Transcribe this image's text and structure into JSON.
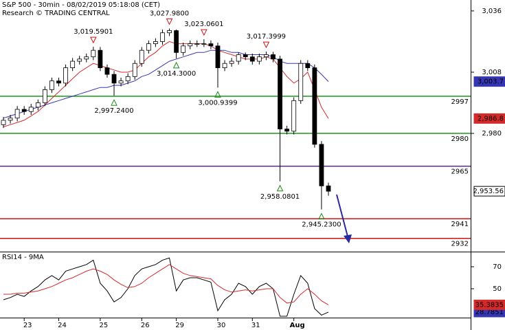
{
  "chart_data": [
    {
      "type": "candlestick",
      "title": "S&P 500 - 30min - 08/02/2019 05:18:08 (CET)",
      "subtitle": "Research © TRADING CENTRAL",
      "categories": [
        null,
        null,
        null,
        "23",
        null,
        null,
        null,
        null,
        "24",
        null,
        null,
        null,
        null,
        null,
        "25",
        null,
        null,
        null,
        null,
        null,
        "26",
        null,
        null,
        null,
        null,
        "29",
        null,
        null,
        null,
        null,
        null,
        "30",
        null,
        null,
        null,
        null,
        "31",
        null,
        null,
        null,
        null,
        null,
        "Aug",
        null,
        null,
        null,
        null,
        null
      ],
      "open": [
        2984,
        2986,
        2987,
        2991,
        2990,
        2992,
        2994,
        3000,
        3004,
        3003,
        3010,
        3013,
        3014,
        3015,
        3018,
        3010,
        3007,
        3003,
        3004,
        3006,
        3012,
        3018,
        3021,
        3022,
        3026,
        3027,
        3017,
        3020,
        3021,
        3021,
        3021,
        3020,
        3010,
        3012,
        3013,
        3016,
        3015,
        3013,
        3015,
        3016,
        3014,
        2982,
        2981,
        2995,
        3012,
        3010,
        2975,
        2956
      ],
      "high": [
        2987.5,
        2988.5,
        2992.5,
        2992.5,
        2993.5,
        2995.5,
        3001.5,
        3005.5,
        3005.5,
        3011.5,
        3014.5,
        3015.5,
        3016.5,
        3019.5901,
        3019.5,
        3011.5,
        3008.5,
        3005.5,
        3007.5,
        3013.5,
        3019.5,
        3022.5,
        3023.5,
        3027.5,
        3027.98,
        3027.5,
        3021.5,
        3022.5,
        3022.5,
        3023.0601,
        3022.5,
        3021.5,
        3013.5,
        3014.5,
        3017,
        3017,
        3016.5,
        3016.5,
        3017.3999,
        3017.3,
        3015.5,
        2983.5,
        2996.5,
        3013.5,
        3013.5,
        3011.5,
        2976.5,
        2957.5
      ],
      "low": [
        2982.5,
        2984.5,
        2985.5,
        2988.5,
        2988.5,
        2990.5,
        2992.5,
        2998.5,
        3001.5,
        3001.5,
        3008.5,
        3011.5,
        3012.5,
        3013.5,
        3008.5,
        3005.5,
        2997.24,
        3001.5,
        3002.5,
        3004.5,
        3010.5,
        3016.5,
        3019.5,
        3020.5,
        3024.5,
        3014.3,
        3015.5,
        3018.5,
        3019.5,
        3019.5,
        3018.5,
        3000.9399,
        3008.5,
        3010.5,
        3011.5,
        3013.5,
        3011.5,
        3011.5,
        3013.5,
        3012.5,
        2958.0801,
        2979.5,
        2979.5,
        2993.5,
        3008.5,
        2973.5,
        2945.23,
        2951.5
      ],
      "close": [
        2986,
        2987,
        2991,
        2990,
        2992,
        2994,
        3000,
        3004,
        3003,
        3010,
        3013,
        3014,
        3015,
        3018,
        3010,
        3007,
        3003,
        3004,
        3006,
        3012,
        3018,
        3021,
        3022,
        3026,
        3027,
        3017,
        3020,
        3021,
        3021,
        3021,
        3020,
        3010,
        3012,
        3013,
        3016,
        3015,
        3013,
        3015,
        3016,
        3014,
        2982,
        2981,
        2995,
        3012,
        3010,
        2975,
        2956,
        2953.56
      ],
      "last_label": "2,953.56",
      "series": [
        {
          "color": "#d42a2a",
          "values": [
            2983,
            2984,
            2985,
            2986,
            2988,
            2990,
            2993,
            2996,
            2999,
            3002,
            3005,
            3008,
            3010,
            3012,
            3011,
            3010,
            3009,
            3008,
            3008,
            3009,
            3012,
            3015,
            3017,
            3020,
            3022,
            3021,
            3021,
            3021,
            3021,
            3021,
            3020,
            3018,
            3017,
            3016,
            3015,
            3014,
            3014,
            3014,
            3015,
            3014,
            3010,
            3006,
            3003,
            3005,
            3008,
            3000,
            2992,
            2986.8
          ],
          "last_label": "2,986.8"
        },
        {
          "color": "#3636b4",
          "values": [
            2987,
            2988,
            2989,
            2990,
            2991,
            2992,
            2993,
            2994,
            2995,
            2996,
            2997,
            2998,
            2999,
            3000,
            3001,
            3001,
            3002,
            3002,
            3003,
            3004,
            3006,
            3007,
            3009,
            3011,
            3013,
            3014,
            3015,
            3016,
            3017,
            3017,
            3018,
            3018,
            3018,
            3017,
            3017,
            3016,
            3016,
            3016,
            3016,
            3015,
            3013,
            3012,
            3012,
            3012,
            3012,
            3010,
            3007,
            3003.7
          ],
          "last_label": "3,003.7"
        }
      ],
      "levels": [
        {
          "value": 2997,
          "color": "#1a9a1a"
        },
        {
          "value": 2980,
          "color": "#1a9a1a"
        },
        {
          "value": 2965,
          "color": "#5a2ca0"
        },
        {
          "value": 2941,
          "color": "#d01010"
        },
        {
          "value": 2932,
          "color": "#d01010"
        }
      ],
      "annotations": [
        {
          "value": 3019.5901,
          "label": "3,019.5901",
          "kind": "high"
        },
        {
          "value": 3027.98,
          "label": "3,027.9800",
          "kind": "high"
        },
        {
          "value": 3023.0601,
          "label": "3,023.0601",
          "kind": "high"
        },
        {
          "value": 3017.3999,
          "label": "3,017.3999",
          "kind": "high"
        },
        {
          "value": 2997.24,
          "label": "2,997.2400",
          "kind": "low"
        },
        {
          "value": 3014.3,
          "label": "3,014.3000",
          "kind": "low"
        },
        {
          "value": 3000.9399,
          "label": "3,000.9399",
          "kind": "low"
        },
        {
          "value": 2958.0801,
          "label": "2,958.0801",
          "kind": "low"
        },
        {
          "value": 2945.23,
          "label": "2,945.2300",
          "kind": "low"
        }
      ],
      "ylim": [
        2926.25,
        3041
      ],
      "yticks": [
        {
          "value": 3036,
          "label": "3,036"
        },
        {
          "value": 3008,
          "label": "3,008"
        },
        {
          "value": 2980,
          "label": "2,980"
        }
      ]
    },
    {
      "type": "line",
      "title": "RSI14 - 9MA",
      "series": [
        {
          "color": "#000000",
          "values": [
            40,
            42,
            45,
            43,
            48,
            52,
            58,
            62,
            58,
            66,
            68,
            70,
            72,
            76,
            55,
            48,
            38,
            42,
            50,
            62,
            68,
            70,
            72,
            76,
            78,
            48,
            58,
            60,
            60,
            58,
            56,
            30,
            40,
            45,
            55,
            52,
            45,
            52,
            55,
            50,
            25,
            25,
            45,
            62,
            55,
            32,
            26,
            28.7851
          ],
          "last_label": "28.7851",
          "box": "#3636b4"
        },
        {
          "color": "#d42a2a",
          "values": [
            45,
            45,
            46,
            46,
            47,
            48,
            50,
            52,
            55,
            58,
            60,
            63,
            66,
            68,
            66,
            63,
            58,
            54,
            51,
            52,
            55,
            60,
            64,
            68,
            72,
            68,
            64,
            62,
            61,
            60,
            59,
            53,
            49,
            47,
            48,
            49,
            48,
            49,
            50,
            50,
            42,
            37,
            38,
            45,
            50,
            45,
            39,
            35.3835
          ],
          "last_label": "35.3835",
          "box": "#d42a2a"
        }
      ],
      "ylim": [
        23.75,
        82.5
      ],
      "yticks": [
        70,
        50
      ]
    }
  ]
}
